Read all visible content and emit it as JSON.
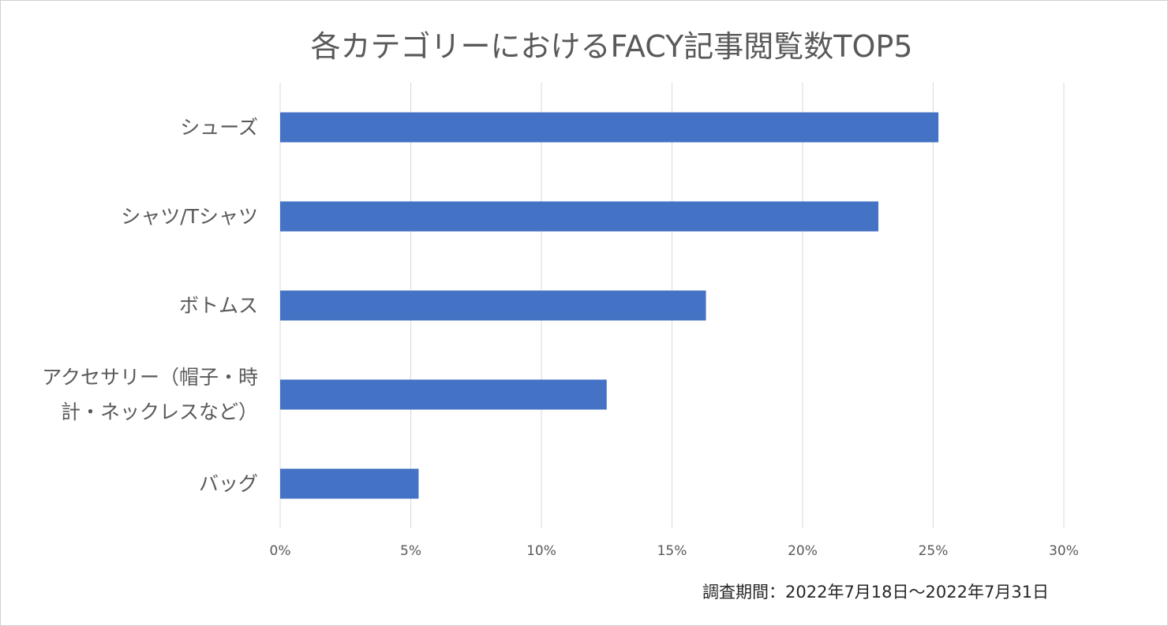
{
  "chart_data": {
    "type": "bar",
    "orientation": "horizontal",
    "title": "各カテゴリーにおけるFACY記事閲覧数TOP5",
    "categories": [
      "シューズ",
      "シャツ/Tシャツ",
      "ボトムス",
      "アクセサリー（帽子・時計・ネックレスなど）",
      "バッグ"
    ],
    "category_lines": [
      [
        "シューズ"
      ],
      [
        "シャツ/Tシャツ"
      ],
      [
        "ボトムス"
      ],
      [
        "アクセサリー（帽子・時",
        "計・ネックレスなど）"
      ],
      [
        "バッグ"
      ]
    ],
    "values": [
      25.2,
      22.9,
      16.3,
      12.5,
      5.3
    ],
    "xlabel": "",
    "ylabel": "",
    "xlim": [
      0,
      30
    ],
    "ticks": [
      0,
      5,
      10,
      15,
      20,
      25,
      30
    ],
    "tick_labels": [
      "0%",
      "5%",
      "10%",
      "15%",
      "20%",
      "25%",
      "30%"
    ],
    "grid": true,
    "bar_color": "#4472c4",
    "grid_color": "#d9d9d9"
  },
  "footnote": "調査期間：2022年7月18日～2022年7月31日"
}
